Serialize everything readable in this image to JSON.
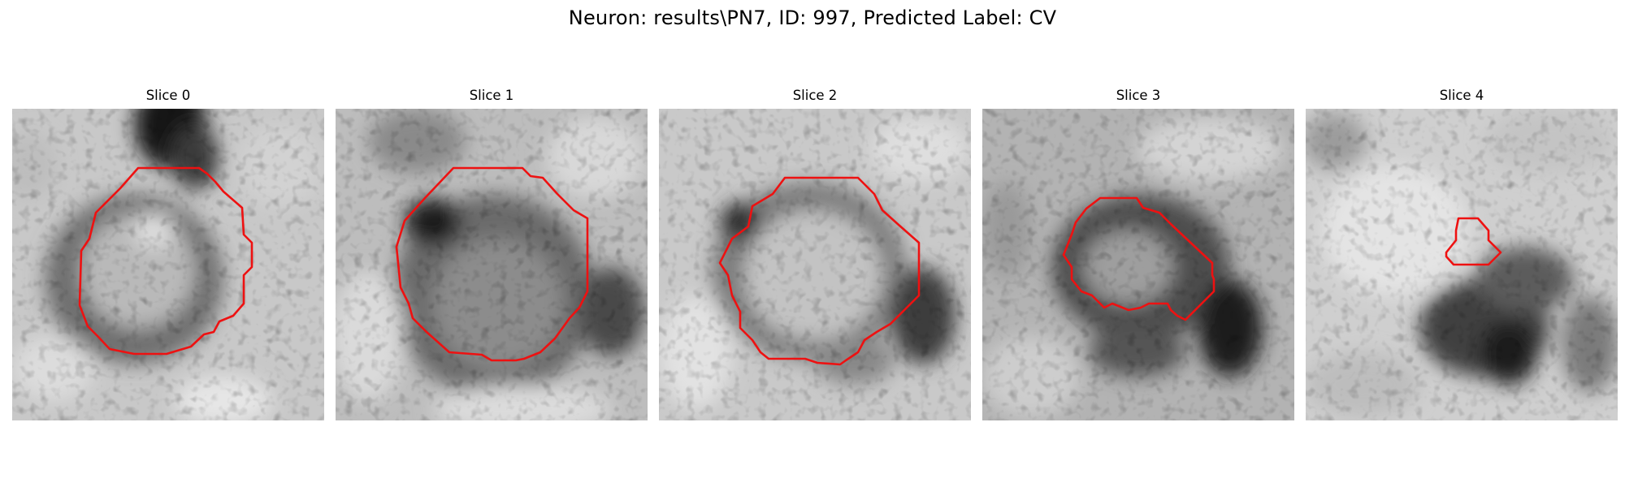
{
  "figure": {
    "title": "Neuron: results\\PN7, ID: 997, Predicted Label: CV",
    "contour_color": "#ee1111"
  },
  "panels": [
    {
      "title": "Slice 0"
    },
    {
      "title": "Slice 1"
    },
    {
      "title": "Slice 2"
    },
    {
      "title": "Slice 3"
    },
    {
      "title": "Slice 4"
    }
  ]
}
